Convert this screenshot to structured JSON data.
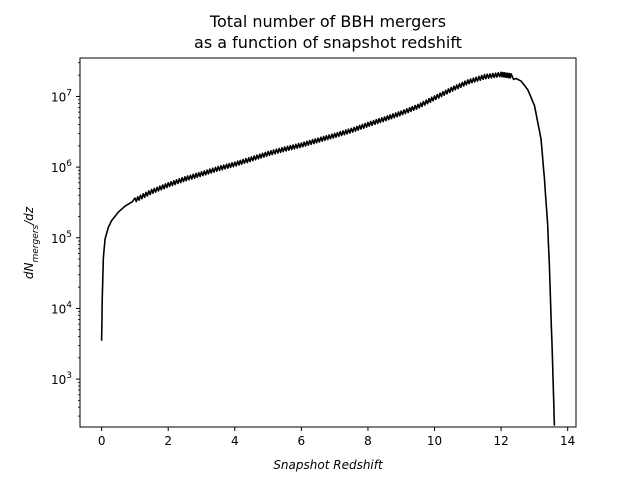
{
  "chart_data": {
    "type": "line",
    "title_lines": [
      "Total number of BBH mergers",
      "as a function of snapshot redshift"
    ],
    "xlabel": "Snapshot Redshift",
    "ylabel_main": "dN",
    "ylabel_sub": "mergers",
    "ylabel_tail": "/dz",
    "x_scale": "linear",
    "y_scale": "log",
    "xlim": [
      -0.65,
      14.25
    ],
    "ylim": [
      210,
      35000000
    ],
    "x_ticks": [
      {
        "value": 0,
        "label": "0"
      },
      {
        "value": 2,
        "label": "2"
      },
      {
        "value": 4,
        "label": "4"
      },
      {
        "value": 6,
        "label": "6"
      },
      {
        "value": 8,
        "label": "8"
      },
      {
        "value": 10,
        "label": "10"
      },
      {
        "value": 12,
        "label": "12"
      },
      {
        "value": 14,
        "label": "14"
      }
    ],
    "y_ticks": [
      {
        "value": 1000,
        "base": "10",
        "exp": "3"
      },
      {
        "value": 10000,
        "base": "10",
        "exp": "4"
      },
      {
        "value": 100000,
        "base": "10",
        "exp": "5"
      },
      {
        "value": 1000000,
        "base": "10",
        "exp": "6"
      },
      {
        "value": 10000000,
        "base": "10",
        "exp": "7"
      }
    ],
    "grid": false,
    "legend": "none",
    "line_color": "#000000",
    "series": [
      {
        "x": [
          0.0,
          0.02,
          0.05,
          0.1,
          0.2,
          0.3,
          0.5,
          0.7,
          1.0,
          1.5,
          2.0,
          2.5,
          3.0,
          3.5,
          4.0,
          4.5,
          5.0,
          5.5,
          6.0,
          6.5,
          7.0,
          7.5,
          8.0,
          8.5,
          9.0,
          9.5,
          10.0,
          10.5,
          11.0,
          11.5,
          12.0,
          12.3,
          12.6,
          12.8,
          13.0,
          13.2,
          13.3,
          13.4,
          13.45,
          13.5,
          13.55,
          13.58,
          13.6
        ],
        "y": [
          3500,
          15000,
          50000,
          95000,
          140000,
          175000,
          230000,
          280000,
          340000,
          450000,
          560000,
          680000,
          800000,
          950000,
          1100000,
          1300000,
          1550000,
          1800000,
          2050000,
          2400000,
          2800000,
          3300000,
          4000000,
          4800000,
          5800000,
          7200000,
          9500000,
          12500000,
          16000000,
          19000000,
          20500000,
          19500000,
          16500000,
          12500000,
          7500000,
          2500000,
          700000,
          150000,
          40000,
          8000,
          1500,
          500,
          220
        ]
      }
    ]
  }
}
